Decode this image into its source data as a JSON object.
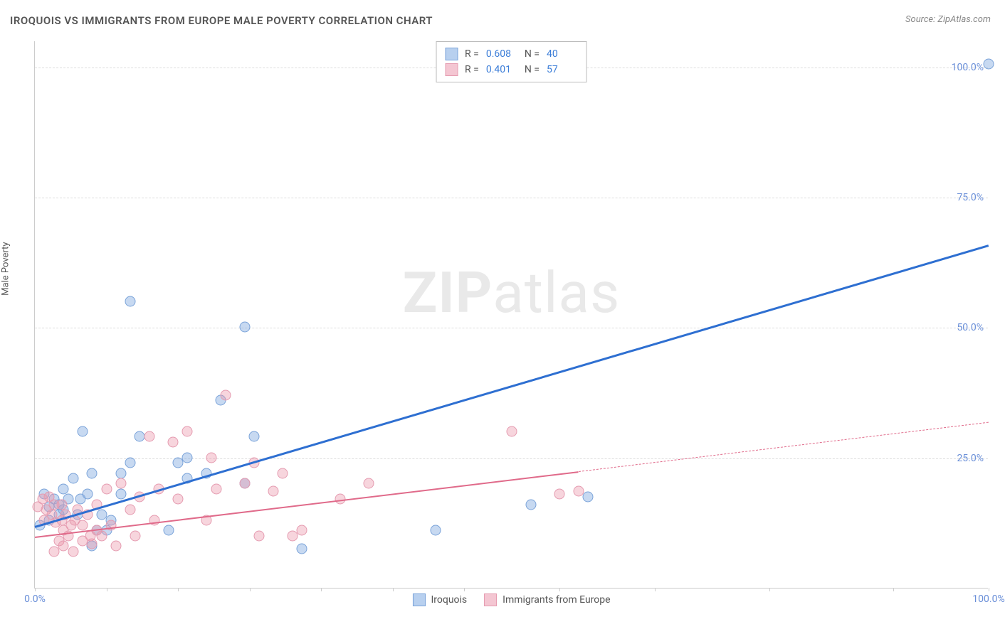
{
  "title": "IROQUOIS VS IMMIGRANTS FROM EUROPE MALE POVERTY CORRELATION CHART",
  "source": "Source: ZipAtlas.com",
  "ylabel": "Male Poverty",
  "watermark": {
    "bold": "ZIP",
    "rest": "atlas"
  },
  "chart": {
    "type": "scatter",
    "xlim": [
      0,
      100
    ],
    "ylim": [
      0,
      105
    ],
    "background_color": "#ffffff",
    "grid_color": "#dddddd",
    "axis_color": "#cccccc",
    "tick_label_color": "#6a8fd8",
    "tick_fontsize": 14,
    "yticks": [
      {
        "pos": 25,
        "label": "25.0%"
      },
      {
        "pos": 50,
        "label": "50.0%"
      },
      {
        "pos": 75,
        "label": "75.0%"
      },
      {
        "pos": 100,
        "label": "100.0%"
      }
    ],
    "xticks_minor": [
      0,
      7.5,
      15,
      22.5,
      30,
      37.5,
      45,
      55,
      65,
      77,
      90,
      100
    ],
    "xticks_labels": [
      {
        "pos": 0,
        "label": "0.0%"
      },
      {
        "pos": 100,
        "label": "100.0%"
      }
    ],
    "series": [
      {
        "name": "Iroquois",
        "marker_fill": "rgba(130,170,225,0.45)",
        "marker_stroke": "#7aa3d9",
        "line_color": "#2e6fd1",
        "line_width": 2.5,
        "swatch_fill": "#b8d0ef",
        "swatch_border": "#7aa3d9",
        "R": "0.608",
        "N": "40",
        "trend": {
          "x1": 0,
          "y1": 12,
          "x2": 100,
          "y2": 66,
          "solid_to_x": 100
        },
        "points": [
          [
            0.5,
            12
          ],
          [
            1,
            18
          ],
          [
            1.5,
            15.5
          ],
          [
            1.5,
            13
          ],
          [
            2,
            17
          ],
          [
            2.5,
            16
          ],
          [
            2.5,
            14
          ],
          [
            3,
            15
          ],
          [
            3,
            19
          ],
          [
            3.5,
            17
          ],
          [
            4,
            21
          ],
          [
            4.5,
            14
          ],
          [
            4.8,
            17
          ],
          [
            5,
            30
          ],
          [
            5.5,
            18
          ],
          [
            6,
            8
          ],
          [
            6,
            22
          ],
          [
            6.5,
            11
          ],
          [
            7,
            14
          ],
          [
            7.5,
            11
          ],
          [
            8,
            13
          ],
          [
            9,
            22
          ],
          [
            9,
            18
          ],
          [
            10,
            24
          ],
          [
            10,
            55
          ],
          [
            11,
            29
          ],
          [
            14,
            11
          ],
          [
            15,
            24
          ],
          [
            16,
            21
          ],
          [
            16,
            25
          ],
          [
            18,
            22
          ],
          [
            19.5,
            36
          ],
          [
            22,
            50
          ],
          [
            22,
            20
          ],
          [
            23,
            29
          ],
          [
            28,
            7.5
          ],
          [
            42,
            11
          ],
          [
            52,
            16
          ],
          [
            58,
            17.5
          ],
          [
            100,
            100.5
          ]
        ]
      },
      {
        "name": "Immigrants from Europe",
        "marker_fill": "rgba(235,150,170,0.40)",
        "marker_stroke": "#e59bb0",
        "line_color": "#e06a8a",
        "line_width": 2,
        "swatch_fill": "#f4c6d2",
        "swatch_border": "#e59bb0",
        "R": "0.401",
        "N": "57",
        "trend": {
          "x1": 0,
          "y1": 10,
          "x2": 100,
          "y2": 32,
          "solid_to_x": 57
        },
        "points": [
          [
            0.3,
            15.5
          ],
          [
            0.8,
            17
          ],
          [
            1,
            13
          ],
          [
            1.2,
            15
          ],
          [
            1.5,
            17.5
          ],
          [
            1.8,
            14
          ],
          [
            2,
            7
          ],
          [
            2,
            16
          ],
          [
            2.2,
            12.5
          ],
          [
            2.5,
            9
          ],
          [
            2.8,
            13
          ],
          [
            2.8,
            16
          ],
          [
            3,
            8
          ],
          [
            3,
            11
          ],
          [
            3.2,
            14
          ],
          [
            3.5,
            10
          ],
          [
            3.8,
            12
          ],
          [
            4,
            7
          ],
          [
            4.2,
            13
          ],
          [
            4.5,
            15
          ],
          [
            5,
            9
          ],
          [
            5,
            12
          ],
          [
            5.5,
            14
          ],
          [
            5.8,
            10
          ],
          [
            6,
            8.5
          ],
          [
            6.5,
            11
          ],
          [
            6.5,
            16
          ],
          [
            7,
            10
          ],
          [
            7.5,
            19
          ],
          [
            8,
            12
          ],
          [
            8.5,
            8
          ],
          [
            9,
            20
          ],
          [
            10,
            15
          ],
          [
            10.5,
            10
          ],
          [
            11,
            17.5
          ],
          [
            12,
            29
          ],
          [
            12.5,
            13
          ],
          [
            13,
            19
          ],
          [
            14.5,
            28
          ],
          [
            15,
            17
          ],
          [
            16,
            30
          ],
          [
            18,
            13
          ],
          [
            18.5,
            25
          ],
          [
            19,
            19
          ],
          [
            20,
            37
          ],
          [
            22,
            20
          ],
          [
            23,
            24
          ],
          [
            23.5,
            10
          ],
          [
            25,
            18.5
          ],
          [
            26,
            22
          ],
          [
            27,
            10
          ],
          [
            28,
            11
          ],
          [
            32,
            17
          ],
          [
            35,
            20
          ],
          [
            50,
            30
          ],
          [
            55,
            18
          ],
          [
            57,
            18.5
          ]
        ]
      }
    ]
  },
  "legend_top": {
    "rows": [
      {
        "series_idx": 0,
        "R_label": "R =",
        "N_label": "N ="
      },
      {
        "series_idx": 1,
        "R_label": "R =",
        "N_label": "N ="
      }
    ]
  },
  "legend_bottom": {
    "items": [
      {
        "series_idx": 0
      },
      {
        "series_idx": 1
      }
    ]
  }
}
